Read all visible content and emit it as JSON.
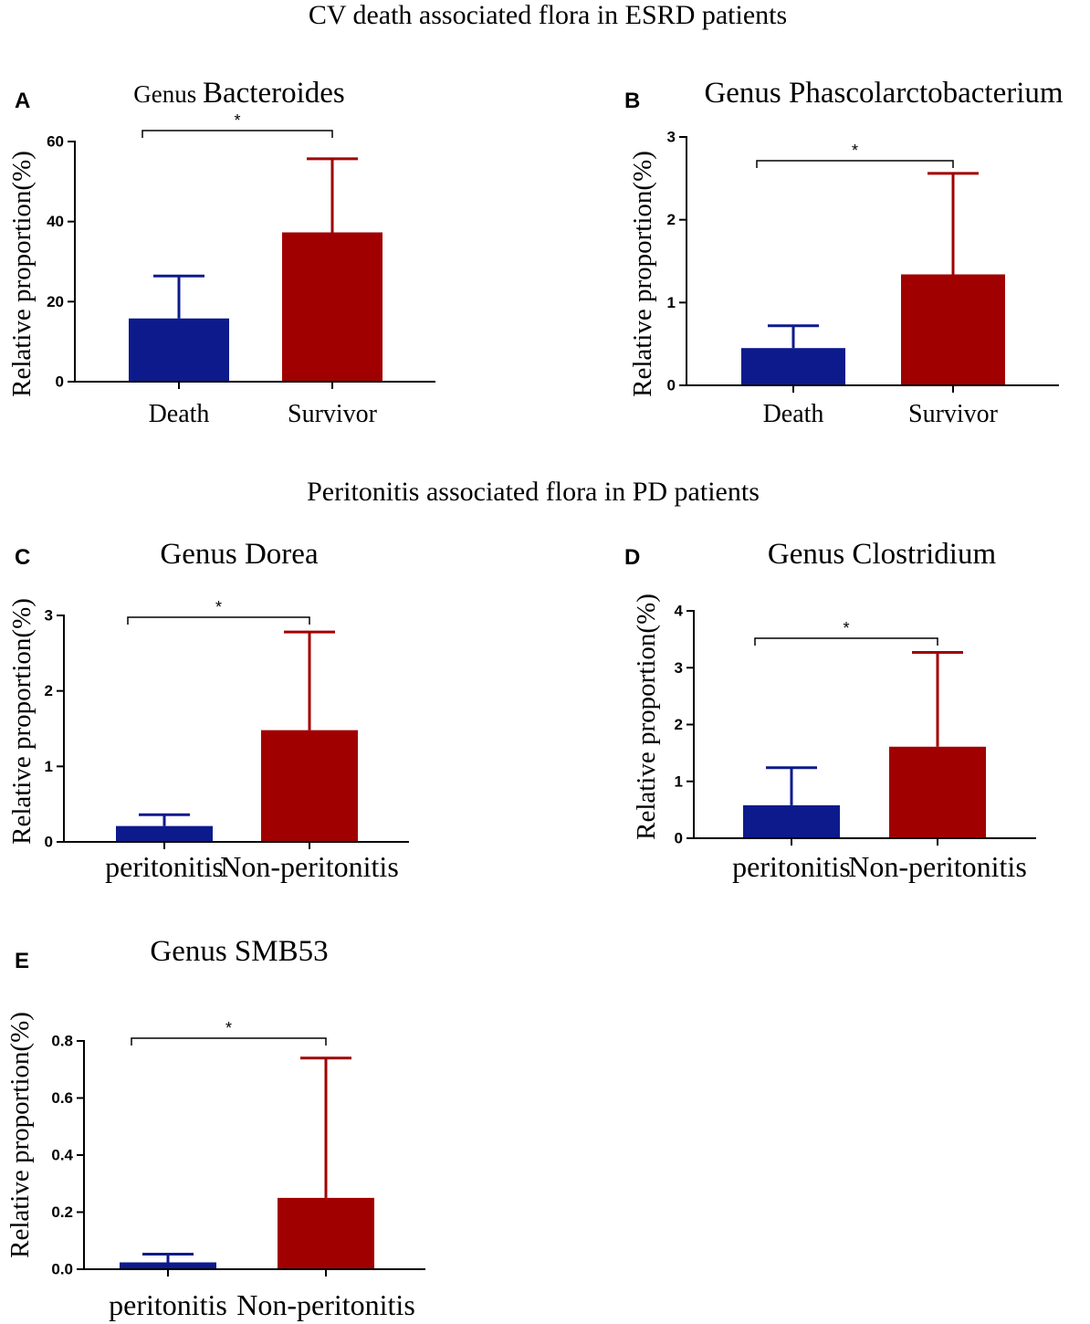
{
  "sections": {
    "top_title": "CV death associated flora in ESRD patients",
    "middle_title": "Peritonitis associated flora in PD patients"
  },
  "colors": {
    "group1": "#0d1a8c",
    "group2": "#a00000",
    "axis": "#000000"
  },
  "chart_data": [
    {
      "id": "A",
      "panel_label": "A",
      "type": "bar",
      "title_prefix": "Genus",
      "title_name": "Bacteroides",
      "ylabel": "Relative proportion(%)",
      "categories": [
        "Death",
        "Survivor"
      ],
      "values": [
        15.8,
        37.3
      ],
      "error": [
        10.6,
        18.4
      ],
      "ylim": [
        0,
        60
      ],
      "yticks": [
        0,
        20,
        40,
        60
      ],
      "ytick_labels": [
        "0",
        "20",
        "40",
        "60"
      ],
      "significance": "*"
    },
    {
      "id": "B",
      "panel_label": "B",
      "type": "bar",
      "title": "Genus Phascolarctobacterium",
      "ylabel": "Relative proportion(%)",
      "categories": [
        "Death",
        "Survivor"
      ],
      "values": [
        0.45,
        1.34
      ],
      "error": [
        0.27,
        1.22
      ],
      "ylim": [
        0,
        3
      ],
      "yticks": [
        0,
        1,
        2,
        3
      ],
      "ytick_labels": [
        "0",
        "1",
        "2",
        "3"
      ],
      "significance": "*"
    },
    {
      "id": "C",
      "panel_label": "C",
      "type": "bar",
      "title": "Genus Dorea",
      "ylabel": "Relative proportion(%)",
      "categories": [
        "peritonitis",
        "Non-peritonitis"
      ],
      "values": [
        0.21,
        1.48
      ],
      "error": [
        0.15,
        1.3
      ],
      "ylim": [
        0,
        3
      ],
      "yticks": [
        0,
        1,
        2,
        3
      ],
      "ytick_labels": [
        "0",
        "1",
        "2",
        "3"
      ],
      "significance": "*"
    },
    {
      "id": "D",
      "panel_label": "D",
      "type": "bar",
      "title": "Genus Clostridium",
      "ylabel": "Relative proportion(%)",
      "categories": [
        "peritonitis",
        "Non-peritonitis"
      ],
      "values": [
        0.58,
        1.61
      ],
      "error": [
        0.66,
        1.66
      ],
      "ylim": [
        0,
        4
      ],
      "yticks": [
        0,
        1,
        2,
        3,
        4
      ],
      "ytick_labels": [
        "0",
        "1",
        "2",
        "3",
        "4"
      ],
      "significance": "*"
    },
    {
      "id": "E",
      "panel_label": "E",
      "type": "bar",
      "title": "Genus SMB53",
      "ylabel": "Relative proportion(%)",
      "categories": [
        "peritonitis",
        "Non-peritonitis"
      ],
      "values": [
        0.024,
        0.25
      ],
      "error": [
        0.029,
        0.49
      ],
      "ylim": [
        0,
        0.8
      ],
      "yticks": [
        0,
        0.2,
        0.4,
        0.6,
        0.8
      ],
      "ytick_labels": [
        "0.0",
        "0.2",
        "0.4",
        "0.6",
        "0.8"
      ],
      "significance": "*"
    }
  ]
}
